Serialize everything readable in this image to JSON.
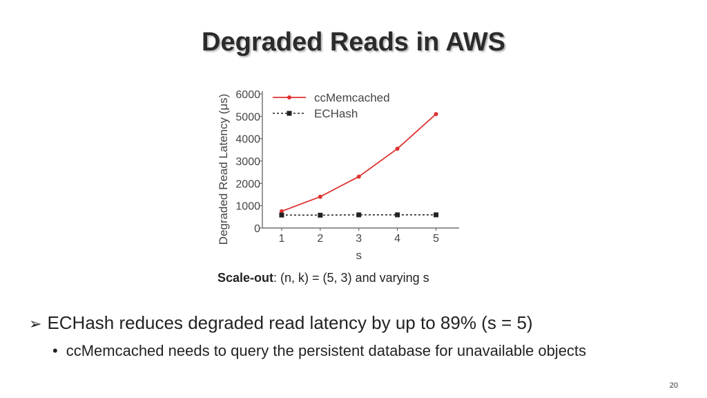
{
  "slide": {
    "title": "Degraded Reads in AWS",
    "caption_bold": "Scale-out",
    "caption_rest": ": (n, k) = (5, 3) and varying s",
    "bullet_main": "ECHash reduces degraded read latency by up to 89% (s = 5)",
    "bullet_sub": "ccMemcached needs to query the persistent database for unavailable objects",
    "page_number": "20"
  },
  "chart_data": {
    "type": "line",
    "title": "",
    "xlabel": "s",
    "ylabel": "Degraded Read Latency (μs)",
    "x": [
      1,
      2,
      3,
      4,
      5
    ],
    "xticks": [
      "1",
      "2",
      "3",
      "4",
      "5"
    ],
    "ylim": [
      0,
      6000
    ],
    "yticks": [
      "0",
      "1000",
      "2000",
      "3000",
      "4000",
      "5000",
      "6000"
    ],
    "grid": false,
    "legend_position": "top-left",
    "series": [
      {
        "name": "ccMemcached",
        "values": [
          750,
          1400,
          2300,
          3550,
          5100
        ],
        "color": "#e03030",
        "style": "solid",
        "marker": "circle"
      },
      {
        "name": "ECHash",
        "values": [
          580,
          575,
          590,
          590,
          590
        ],
        "color": "#222222",
        "style": "dotted",
        "marker": "square"
      }
    ]
  }
}
